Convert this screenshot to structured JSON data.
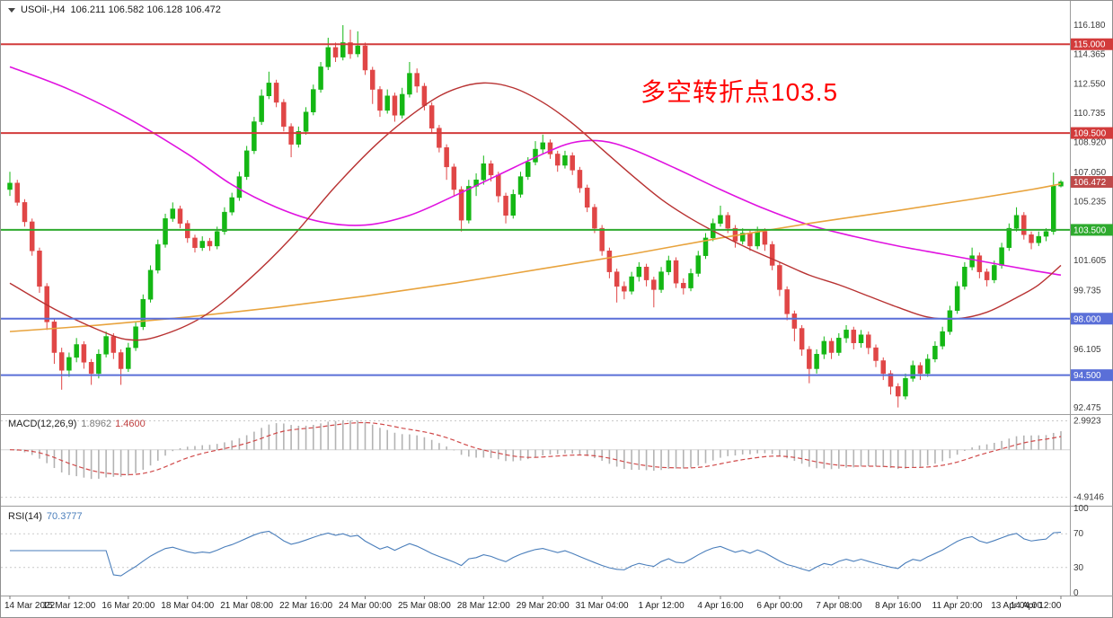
{
  "header": {
    "symbol_period": "USOil-,H4",
    "ohlc": "106.211 106.582 106.128 106.472"
  },
  "annotation": {
    "text": "多空转折点103.5",
    "color": "#ff0000"
  },
  "panes": {
    "macd": {
      "title": "MACD(12,26,9)",
      "value_main": "1.8962",
      "value_signal": "1.4600"
    },
    "rsi": {
      "title": "RSI(14)",
      "value": "70.3777",
      "levels": [
        70,
        30
      ]
    }
  },
  "chart_data": {
    "type": "candlestick",
    "symbol": "USOil-",
    "timeframe": "H4",
    "price_range": [
      92.2,
      117.35
    ],
    "macd_range": [
      -5.6,
      3.5
    ],
    "rsi_range": [
      0,
      100
    ],
    "current_price": {
      "value": 106.472,
      "label": "106.472",
      "color": "#bf4a4a"
    },
    "hlines": [
      {
        "value": 115.0,
        "label": "115.000",
        "color": "#d23b3b",
        "width": 2
      },
      {
        "value": 109.5,
        "label": "109.500",
        "color": "#d23b3b",
        "width": 2
      },
      {
        "value": 103.5,
        "label": "103.500",
        "color": "#2eaa2e",
        "width": 2
      },
      {
        "value": 98.0,
        "label": "98.000",
        "color": "#5a6fd8",
        "width": 2
      },
      {
        "value": 94.5,
        "label": "94.500",
        "color": "#5a6fd8",
        "width": 2
      }
    ],
    "y_ticks": [
      {
        "value": 116.18,
        "label": "116.180"
      },
      {
        "value": 114.365,
        "label": "114.365"
      },
      {
        "value": 112.55,
        "label": "112.550"
      },
      {
        "value": 110.735,
        "label": "110.735"
      },
      {
        "value": 108.92,
        "label": "108.920"
      },
      {
        "value": 107.05,
        "label": "107.050"
      },
      {
        "value": 105.235,
        "label": "105.235"
      },
      {
        "value": 101.605,
        "label": "101.605"
      },
      {
        "value": 99.735,
        "label": "99.735"
      },
      {
        "value": 96.105,
        "label": "96.105"
      },
      {
        "value": 92.475,
        "label": "92.475"
      }
    ],
    "macd_ticks": [
      {
        "value": 2.9923,
        "label": "2.9923"
      },
      {
        "value": -4.9146,
        "label": "-4.9146"
      }
    ],
    "rsi_ticks": [
      {
        "value": 100,
        "label": "100"
      },
      {
        "value": 70,
        "label": "70"
      },
      {
        "value": 30,
        "label": "30"
      },
      {
        "value": 0,
        "label": "0"
      }
    ],
    "x_labels": [
      {
        "i": 0,
        "label": "14 Mar 2022"
      },
      {
        "i": 8,
        "label": "15 Mar 12:00"
      },
      {
        "i": 16,
        "label": "16 Mar 20:00"
      },
      {
        "i": 24,
        "label": "18 Mar 04:00"
      },
      {
        "i": 32,
        "label": "21 Mar 08:00"
      },
      {
        "i": 40,
        "label": "22 Mar 16:00"
      },
      {
        "i": 48,
        "label": "24 Mar 00:00"
      },
      {
        "i": 56,
        "label": "25 Mar 08:00"
      },
      {
        "i": 64,
        "label": "28 Mar 12:00"
      },
      {
        "i": 72,
        "label": "29 Mar 20:00"
      },
      {
        "i": 80,
        "label": "31 Mar 04:00"
      },
      {
        "i": 88,
        "label": "1 Apr 12:00"
      },
      {
        "i": 96,
        "label": "4 Apr 16:00"
      },
      {
        "i": 104,
        "label": "6 Apr 00:00"
      },
      {
        "i": 112,
        "label": "7 Apr 08:00"
      },
      {
        "i": 120,
        "label": "8 Apr 16:00"
      },
      {
        "i": 128,
        "label": "11 Apr 20:00"
      },
      {
        "i": 136,
        "label": "13 Apr 04:00"
      },
      {
        "i": 142,
        "label": "14 Apr 12:00"
      }
    ],
    "candles": [
      [
        106.0,
        107.1,
        105.6,
        106.4
      ],
      [
        106.4,
        106.6,
        105.0,
        105.2
      ],
      [
        105.2,
        105.4,
        103.7,
        104.0
      ],
      [
        104.0,
        104.2,
        101.9,
        102.2
      ],
      [
        102.2,
        102.4,
        99.6,
        100.0
      ],
      [
        100.0,
        100.2,
        97.3,
        97.8
      ],
      [
        97.8,
        98.0,
        95.2,
        95.9
      ],
      [
        95.9,
        96.2,
        93.6,
        94.8
      ],
      [
        94.8,
        95.9,
        94.4,
        95.6
      ],
      [
        95.6,
        96.8,
        95.3,
        96.4
      ],
      [
        96.4,
        96.6,
        94.9,
        95.3
      ],
      [
        95.3,
        95.5,
        93.9,
        94.6
      ],
      [
        94.6,
        96.1,
        94.3,
        95.8
      ],
      [
        95.8,
        97.2,
        95.6,
        96.9
      ],
      [
        96.9,
        97.1,
        95.5,
        95.9
      ],
      [
        95.9,
        96.1,
        93.9,
        94.9
      ],
      [
        94.9,
        96.5,
        94.7,
        96.2
      ],
      [
        96.2,
        97.8,
        96.0,
        97.5
      ],
      [
        97.5,
        99.5,
        97.3,
        99.2
      ],
      [
        99.2,
        101.3,
        99.0,
        101.0
      ],
      [
        101.0,
        102.9,
        100.8,
        102.6
      ],
      [
        102.6,
        104.5,
        102.4,
        104.2
      ],
      [
        104.2,
        105.2,
        104.0,
        104.8
      ],
      [
        104.8,
        105.0,
        103.6,
        103.9
      ],
      [
        103.9,
        104.1,
        102.7,
        103.0
      ],
      [
        103.0,
        103.2,
        102.1,
        102.4
      ],
      [
        102.4,
        103.1,
        102.2,
        102.8
      ],
      [
        102.8,
        103.0,
        102.2,
        102.5
      ],
      [
        102.5,
        103.7,
        102.3,
        103.4
      ],
      [
        103.4,
        104.9,
        103.2,
        104.6
      ],
      [
        104.6,
        105.8,
        104.4,
        105.5
      ],
      [
        105.5,
        107.1,
        105.3,
        106.8
      ],
      [
        106.8,
        108.7,
        106.6,
        108.4
      ],
      [
        108.4,
        110.5,
        108.2,
        110.2
      ],
      [
        110.2,
        112.2,
        110.0,
        111.8
      ],
      [
        111.8,
        113.3,
        111.6,
        112.6
      ],
      [
        112.6,
        112.8,
        111.1,
        111.4
      ],
      [
        111.4,
        111.6,
        109.6,
        109.9
      ],
      [
        109.9,
        110.1,
        108.0,
        108.8
      ],
      [
        108.8,
        109.9,
        108.6,
        109.6
      ],
      [
        109.6,
        111.1,
        109.4,
        110.8
      ],
      [
        110.8,
        112.5,
        110.6,
        112.2
      ],
      [
        112.2,
        113.9,
        112.0,
        113.6
      ],
      [
        113.6,
        115.4,
        113.4,
        114.8
      ],
      [
        114.8,
        115.1,
        113.9,
        114.2
      ],
      [
        114.2,
        116.18,
        114.0,
        115.1
      ],
      [
        115.1,
        115.9,
        114.1,
        114.4
      ],
      [
        114.4,
        115.8,
        114.2,
        114.9
      ],
      [
        114.9,
        115.1,
        113.1,
        113.4
      ],
      [
        113.4,
        113.6,
        111.3,
        112.2
      ],
      [
        112.2,
        112.4,
        110.5,
        110.9
      ],
      [
        110.9,
        112.2,
        110.7,
        111.8
      ],
      [
        111.8,
        112.0,
        110.2,
        110.6
      ],
      [
        110.6,
        112.3,
        110.4,
        111.9
      ],
      [
        111.9,
        113.9,
        111.7,
        113.2
      ],
      [
        113.2,
        113.5,
        112.0,
        112.4
      ],
      [
        112.4,
        112.6,
        110.9,
        111.2
      ],
      [
        111.2,
        111.4,
        109.5,
        109.8
      ],
      [
        109.8,
        110.0,
        108.3,
        108.6
      ],
      [
        108.6,
        108.8,
        106.6,
        107.4
      ],
      [
        107.4,
        107.6,
        105.6,
        106.0
      ],
      [
        106.0,
        106.2,
        103.4,
        104.1
      ],
      [
        104.1,
        106.6,
        103.9,
        106.2
      ],
      [
        106.2,
        107.0,
        105.6,
        106.6
      ],
      [
        106.6,
        108.1,
        106.3,
        107.6
      ],
      [
        107.6,
        107.8,
        106.5,
        106.9
      ],
      [
        106.9,
        107.1,
        105.2,
        105.6
      ],
      [
        105.6,
        105.8,
        103.9,
        104.4
      ],
      [
        104.4,
        106.0,
        104.2,
        105.7
      ],
      [
        105.7,
        107.1,
        105.5,
        106.8
      ],
      [
        106.8,
        108.0,
        106.6,
        107.7
      ],
      [
        107.7,
        109.0,
        107.5,
        108.5
      ],
      [
        108.5,
        109.4,
        108.2,
        108.9
      ],
      [
        108.9,
        109.1,
        107.9,
        108.2
      ],
      [
        108.2,
        108.4,
        107.1,
        107.5
      ],
      [
        107.5,
        108.4,
        107.3,
        108.1
      ],
      [
        108.1,
        108.3,
        106.9,
        107.2
      ],
      [
        107.2,
        107.4,
        105.8,
        106.1
      ],
      [
        106.1,
        106.3,
        104.6,
        104.9
      ],
      [
        104.9,
        105.1,
        103.3,
        103.6
      ],
      [
        103.6,
        103.8,
        101.9,
        102.2
      ],
      [
        102.2,
        102.4,
        100.5,
        100.9
      ],
      [
        100.9,
        101.1,
        99.0,
        100.0
      ],
      [
        100.0,
        100.3,
        99.2,
        99.7
      ],
      [
        99.7,
        100.9,
        99.5,
        100.6
      ],
      [
        100.6,
        101.5,
        100.3,
        101.2
      ],
      [
        101.2,
        101.4,
        100.0,
        100.4
      ],
      [
        100.4,
        100.6,
        98.7,
        99.8
      ],
      [
        99.8,
        101.2,
        99.6,
        100.9
      ],
      [
        100.9,
        101.9,
        100.7,
        101.6
      ],
      [
        101.6,
        101.8,
        99.9,
        100.2
      ],
      [
        100.2,
        100.5,
        99.5,
        99.9
      ],
      [
        99.9,
        101.1,
        99.7,
        100.8
      ],
      [
        100.8,
        102.2,
        100.6,
        101.9
      ],
      [
        101.9,
        103.3,
        101.7,
        103.0
      ],
      [
        103.0,
        104.2,
        102.8,
        103.9
      ],
      [
        103.9,
        105.0,
        103.7,
        104.4
      ],
      [
        104.4,
        104.6,
        103.3,
        103.6
      ],
      [
        103.6,
        103.8,
        102.4,
        102.8
      ],
      [
        102.8,
        103.6,
        102.6,
        103.3
      ],
      [
        103.3,
        103.5,
        102.2,
        102.5
      ],
      [
        102.5,
        103.7,
        102.3,
        103.4
      ],
      [
        103.4,
        103.6,
        102.2,
        102.6
      ],
      [
        102.6,
        102.8,
        101.0,
        101.3
      ],
      [
        101.3,
        101.5,
        99.4,
        99.8
      ],
      [
        99.8,
        100.0,
        97.9,
        98.3
      ],
      [
        98.3,
        98.5,
        96.6,
        97.4
      ],
      [
        97.4,
        97.6,
        95.7,
        96.1
      ],
      [
        96.1,
        96.3,
        94.0,
        94.9
      ],
      [
        94.9,
        96.1,
        94.6,
        95.8
      ],
      [
        95.8,
        96.9,
        95.5,
        96.6
      ],
      [
        96.6,
        96.8,
        95.5,
        95.9
      ],
      [
        95.9,
        97.1,
        95.7,
        96.8
      ],
      [
        96.8,
        97.6,
        96.5,
        97.3
      ],
      [
        97.3,
        97.5,
        96.1,
        96.5
      ],
      [
        96.5,
        97.3,
        96.2,
        97.0
      ],
      [
        97.0,
        97.2,
        95.8,
        96.2
      ],
      [
        96.2,
        96.4,
        95.0,
        95.4
      ],
      [
        95.4,
        95.6,
        94.2,
        94.6
      ],
      [
        94.6,
        94.8,
        93.3,
        93.8
      ],
      [
        93.8,
        94.0,
        92.5,
        93.2
      ],
      [
        93.2,
        94.6,
        93.0,
        94.3
      ],
      [
        94.3,
        95.4,
        94.1,
        95.1
      ],
      [
        95.1,
        95.3,
        94.2,
        94.6
      ],
      [
        94.6,
        95.8,
        94.4,
        95.5
      ],
      [
        95.5,
        96.6,
        95.3,
        96.3
      ],
      [
        96.3,
        97.5,
        96.1,
        97.2
      ],
      [
        97.2,
        98.8,
        97.0,
        98.5
      ],
      [
        98.5,
        100.3,
        98.3,
        100.0
      ],
      [
        100.0,
        101.5,
        99.8,
        101.2
      ],
      [
        101.2,
        102.4,
        101.0,
        101.9
      ],
      [
        101.9,
        102.1,
        100.5,
        100.9
      ],
      [
        100.9,
        101.1,
        100.0,
        100.4
      ],
      [
        100.4,
        101.6,
        100.2,
        101.3
      ],
      [
        101.3,
        102.7,
        101.1,
        102.4
      ],
      [
        102.4,
        103.9,
        102.2,
        103.6
      ],
      [
        103.6,
        104.9,
        103.4,
        104.4
      ],
      [
        104.4,
        104.6,
        102.9,
        103.2
      ],
      [
        103.2,
        103.4,
        102.3,
        102.7
      ],
      [
        102.7,
        103.4,
        102.5,
        103.1
      ],
      [
        103.1,
        103.6,
        102.8,
        103.4
      ],
      [
        103.4,
        107.05,
        103.2,
        106.21
      ],
      [
        106.211,
        106.582,
        106.128,
        106.472
      ]
    ],
    "overlays": [
      {
        "name": "ma-long-magenta",
        "color": "#e012e0",
        "width": 1.6,
        "points": [
          [
            0,
            113.6
          ],
          [
            8,
            112.2
          ],
          [
            16,
            110.4
          ],
          [
            24,
            108.2
          ],
          [
            30,
            106.3
          ],
          [
            36,
            104.9
          ],
          [
            42,
            104.0
          ],
          [
            48,
            103.8
          ],
          [
            54,
            104.4
          ],
          [
            60,
            105.6
          ],
          [
            66,
            106.9
          ],
          [
            72,
            108.2
          ],
          [
            76,
            108.9
          ],
          [
            80,
            109.0
          ],
          [
            84,
            108.5
          ],
          [
            90,
            107.3
          ],
          [
            96,
            106.0
          ],
          [
            102,
            104.8
          ],
          [
            108,
            103.8
          ],
          [
            114,
            103.1
          ],
          [
            120,
            102.5
          ],
          [
            126,
            102.0
          ],
          [
            132,
            101.5
          ],
          [
            138,
            101.0
          ],
          [
            142,
            100.7
          ]
        ]
      },
      {
        "name": "ma-trend-orange",
        "color": "#e8a33d",
        "width": 1.6,
        "points": [
          [
            0,
            97.2
          ],
          [
            12,
            97.6
          ],
          [
            24,
            98.1
          ],
          [
            36,
            98.7
          ],
          [
            48,
            99.4
          ],
          [
            60,
            100.2
          ],
          [
            72,
            101.1
          ],
          [
            84,
            102.0
          ],
          [
            96,
            103.0
          ],
          [
            108,
            103.9
          ],
          [
            120,
            104.7
          ],
          [
            130,
            105.4
          ],
          [
            138,
            106.0
          ],
          [
            142,
            106.35
          ]
        ]
      },
      {
        "name": "ma-mid-red",
        "color": "#b83232",
        "width": 1.4,
        "points": [
          [
            0,
            100.2
          ],
          [
            6,
            98.6
          ],
          [
            12,
            97.3
          ],
          [
            16,
            96.7
          ],
          [
            20,
            96.9
          ],
          [
            26,
            98.1
          ],
          [
            32,
            100.3
          ],
          [
            38,
            103.0
          ],
          [
            44,
            106.2
          ],
          [
            50,
            109.0
          ],
          [
            56,
            111.2
          ],
          [
            60,
            112.2
          ],
          [
            64,
            112.6
          ],
          [
            68,
            112.3
          ],
          [
            72,
            111.4
          ],
          [
            76,
            110.1
          ],
          [
            80,
            108.5
          ],
          [
            84,
            106.9
          ],
          [
            88,
            105.4
          ],
          [
            92,
            104.2
          ],
          [
            96,
            103.2
          ],
          [
            100,
            102.3
          ],
          [
            104,
            101.5
          ],
          [
            108,
            100.7
          ],
          [
            112,
            100.1
          ],
          [
            116,
            99.4
          ],
          [
            120,
            98.7
          ],
          [
            124,
            98.1
          ],
          [
            128,
            98.0
          ],
          [
            132,
            98.4
          ],
          [
            136,
            99.3
          ],
          [
            139,
            100.1
          ],
          [
            142,
            101.3
          ]
        ]
      }
    ],
    "colors": {
      "up": "#14b714",
      "down": "#e04646",
      "macd_hist": "#b3b3b3",
      "macd_signal": "#d04a4a",
      "rsi_line": "#4a7ebb",
      "separator": "#9c9c9c",
      "level_dotted": "#c9c9c9"
    }
  }
}
